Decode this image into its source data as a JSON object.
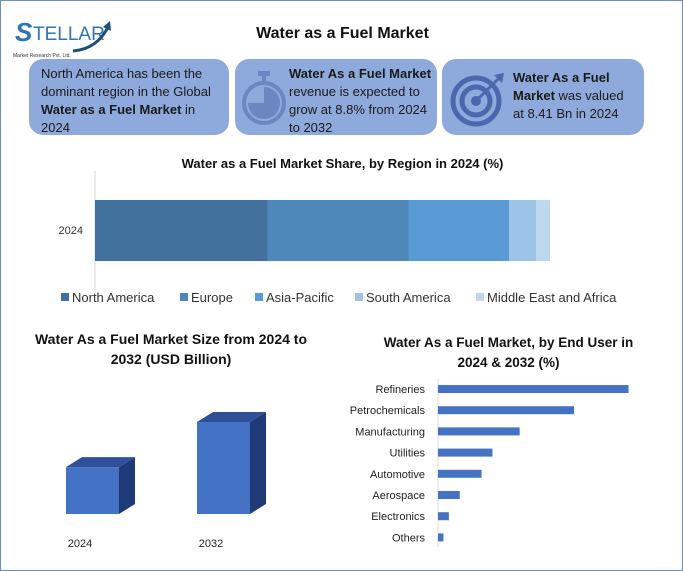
{
  "header": {
    "title": "Water as a Fuel Market",
    "logo_text": "STELLAR",
    "logo_subtext": "Market Research Pvt. Ltd."
  },
  "cards": [
    {
      "icon": "globe-card",
      "pre": "North America has been the dominant region in the Global ",
      "bold": "Water as a Fuel Market",
      "post": " in 2024"
    },
    {
      "icon": "stopwatch-icon",
      "bold": "Water As a Fuel Market",
      "post": " revenue is expected to grow at 8.8% from 2024 to 2032"
    },
    {
      "icon": "target-icon",
      "bold": "Water As a Fuel Market",
      "post": " was valued at 8.41 Bn in 2024"
    }
  ],
  "chart_data": [
    {
      "type": "bar",
      "orientation": "horizontal",
      "stacked": true,
      "title": "Water as a Fuel Market Share, by Region in 2024 (%)",
      "categories": [
        "2024"
      ],
      "xlim": [
        0,
        120
      ],
      "legend": "bottom",
      "series": [
        {
          "name": "North America",
          "values": [
            38
          ],
          "color": "#41719c"
        },
        {
          "name": "Europe",
          "values": [
            31
          ],
          "color": "#4e88bb"
        },
        {
          "name": "Asia-Pacific",
          "values": [
            22
          ],
          "color": "#5b9bd5"
        },
        {
          "name": "South America",
          "values": [
            6
          ],
          "color": "#9dc3e6"
        },
        {
          "name": "Middle East and Africa",
          "values": [
            3
          ],
          "color": "#bdd7ee"
        }
      ]
    },
    {
      "type": "bar",
      "style": "3d",
      "title": "Water As a Fuel Market Size from 2024 to 2032 (USD Billion)",
      "categories": [
        "2024",
        "2032"
      ],
      "values": [
        8.41,
        16.5
      ],
      "ylim": [
        0,
        20
      ],
      "color": "#4472c4"
    },
    {
      "type": "bar",
      "orientation": "horizontal",
      "title": "Water As a Fuel Market, by End User in 2024 & 2032 (%)",
      "categories": [
        "Refineries",
        "Petrochemicals",
        "Manufacturing",
        "Utilities",
        "Automotive",
        "Aerospace",
        "Electronics",
        "Others"
      ],
      "values": [
        35,
        25,
        15,
        10,
        8,
        4,
        2,
        1
      ],
      "xlim": [
        0,
        36
      ],
      "color": "#4472c4"
    }
  ]
}
